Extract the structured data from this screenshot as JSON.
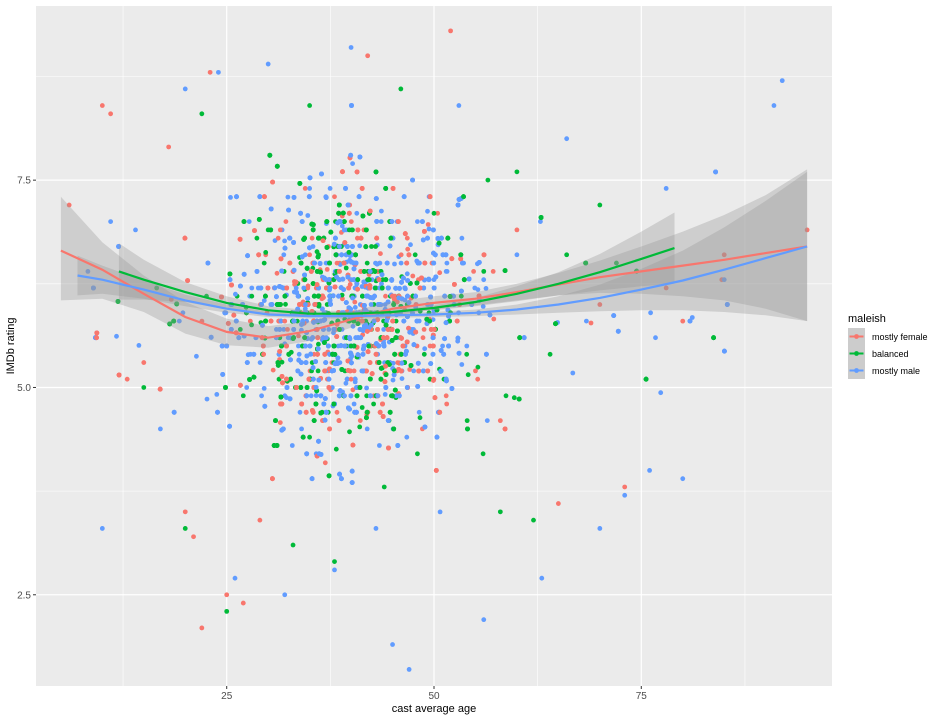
{
  "chart_data": {
    "type": "scatter",
    "xlabel": "cast average age",
    "ylabel": "IMDb rating",
    "xlim": [
      2,
      98
    ],
    "ylim": [
      1.4,
      9.6
    ],
    "x_ticks": [
      25,
      50,
      75
    ],
    "x_tick_labels": [
      "25",
      "50",
      "75"
    ],
    "y_ticks": [
      2.5,
      5.0,
      7.5
    ],
    "y_tick_labels": [
      "2.5",
      "5.0",
      "7.5"
    ],
    "grid": true,
    "legend": {
      "title": "maleish",
      "position": "right",
      "entries": [
        "mostly female",
        "balanced",
        "mostly male"
      ]
    },
    "colors": {
      "mostly female": "#F8766D",
      "balanced": "#00BA38",
      "mostly male": "#619CFF",
      "panel": "#EBEBEB",
      "grid": "#FFFFFF",
      "ribbon": "#999999"
    },
    "series": [
      {
        "name": "mostly female",
        "trend": {
          "x": [
            5,
            10,
            15,
            20,
            25,
            30,
            35,
            40,
            45,
            50,
            55,
            60,
            65,
            70,
            75,
            80,
            85,
            90,
            95
          ],
          "y": [
            6.65,
            6.42,
            6.13,
            5.85,
            5.67,
            5.6,
            5.68,
            5.82,
            5.95,
            6.02,
            6.07,
            6.15,
            6.24,
            6.33,
            6.4,
            6.47,
            6.54,
            6.62,
            6.7
          ],
          "ymin": [
            6.05,
            6.07,
            5.91,
            5.65,
            5.51,
            5.48,
            5.56,
            5.72,
            5.86,
            5.94,
            5.99,
            6.05,
            6.11,
            6.14,
            6.13,
            6.1,
            6.05,
            5.95,
            5.8
          ],
          "ymax": [
            7.3,
            6.75,
            6.35,
            6.03,
            5.83,
            5.74,
            5.8,
            5.92,
            6.04,
            6.1,
            6.15,
            6.25,
            6.38,
            6.53,
            6.7,
            6.88,
            7.08,
            7.32,
            7.63
          ]
        },
        "sample_points": [
          [
            6,
            7.2
          ],
          [
            10,
            8.4
          ],
          [
            11,
            8.3
          ],
          [
            13,
            5.1
          ],
          [
            15,
            5.3
          ],
          [
            18,
            7.9
          ],
          [
            20,
            3.5
          ],
          [
            21,
            3.2
          ],
          [
            22,
            2.1
          ],
          [
            23,
            8.8
          ],
          [
            25,
            2.5
          ],
          [
            27,
            2.4
          ],
          [
            29,
            3.4
          ],
          [
            32,
            5.8
          ],
          [
            35,
            6.6
          ],
          [
            38,
            7.3
          ],
          [
            40,
            5.1
          ],
          [
            42,
            9.0
          ],
          [
            46,
            5.6
          ],
          [
            52,
            9.3
          ],
          [
            55,
            5.2
          ],
          [
            58,
            4.6
          ],
          [
            60,
            6.9
          ],
          [
            65,
            3.6
          ],
          [
            70,
            6.0
          ],
          [
            73,
            3.8
          ],
          [
            78,
            6.2
          ],
          [
            80,
            5.8
          ],
          [
            85,
            6.6
          ],
          [
            95,
            6.9
          ]
        ]
      },
      {
        "name": "balanced",
        "trend": {
          "x": [
            12,
            15,
            20,
            25,
            30,
            35,
            40,
            45,
            50,
            55,
            60,
            65,
            70,
            75,
            79
          ],
          "y": [
            6.4,
            6.3,
            6.15,
            6.02,
            5.93,
            5.89,
            5.89,
            5.91,
            5.96,
            6.03,
            6.13,
            6.25,
            6.39,
            6.55,
            6.68
          ],
          "ymin": [
            6.06,
            6.06,
            6.03,
            5.94,
            5.88,
            5.85,
            5.86,
            5.88,
            5.93,
            5.98,
            6.04,
            6.11,
            6.17,
            6.22,
            6.25
          ],
          "ymax": [
            6.74,
            6.54,
            6.27,
            6.1,
            5.98,
            5.93,
            5.92,
            5.94,
            5.99,
            6.08,
            6.22,
            6.39,
            6.61,
            6.88,
            7.11
          ]
        },
        "sample_points": [
          [
            15,
            5.0
          ],
          [
            20,
            3.3
          ],
          [
            22,
            8.3
          ],
          [
            25,
            2.3
          ],
          [
            27,
            4.9
          ],
          [
            30,
            6.9
          ],
          [
            33,
            3.1
          ],
          [
            35,
            8.4
          ],
          [
            38,
            2.9
          ],
          [
            40,
            5.5
          ],
          [
            42,
            6.3
          ],
          [
            44,
            3.8
          ],
          [
            46,
            8.6
          ],
          [
            48,
            4.2
          ],
          [
            50,
            7.1
          ],
          [
            52,
            5.9
          ],
          [
            54,
            4.6
          ],
          [
            56,
            6.4
          ],
          [
            58,
            3.5
          ],
          [
            60,
            7.6
          ],
          [
            62,
            3.4
          ],
          [
            64,
            5.4
          ],
          [
            66,
            6.6
          ],
          [
            70,
            7.2
          ],
          [
            72,
            6.5
          ]
        ]
      },
      {
        "name": "mostly male",
        "trend": {
          "x": [
            7,
            10,
            15,
            20,
            25,
            30,
            35,
            40,
            45,
            50,
            55,
            60,
            65,
            70,
            75,
            80,
            85,
            90,
            95
          ],
          "y": [
            6.35,
            6.3,
            6.18,
            6.05,
            5.95,
            5.88,
            5.86,
            5.86,
            5.87,
            5.88,
            5.9,
            5.94,
            6.0,
            6.08,
            6.18,
            6.29,
            6.42,
            6.56,
            6.7
          ],
          "ymin": [
            6.11,
            6.13,
            6.07,
            5.98,
            5.9,
            5.85,
            5.83,
            5.83,
            5.84,
            5.85,
            5.86,
            5.88,
            5.9,
            5.92,
            5.93,
            5.93,
            5.91,
            5.87,
            5.8
          ],
          "ymax": [
            6.59,
            6.47,
            6.29,
            6.12,
            6.0,
            5.91,
            5.89,
            5.89,
            5.9,
            5.91,
            5.94,
            6.0,
            6.1,
            6.24,
            6.43,
            6.65,
            6.93,
            7.25,
            7.6
          ]
        },
        "sample_points": [
          [
            10,
            3.3
          ],
          [
            11,
            7.0
          ],
          [
            14,
            6.9
          ],
          [
            17,
            4.5
          ],
          [
            20,
            8.6
          ],
          [
            24,
            8.8
          ],
          [
            26,
            2.7
          ],
          [
            30,
            8.9
          ],
          [
            32,
            2.5
          ],
          [
            35,
            7.4
          ],
          [
            38,
            2.8
          ],
          [
            40,
            9.1
          ],
          [
            43,
            3.3
          ],
          [
            45,
            1.9
          ],
          [
            47,
            1.6
          ],
          [
            50,
            6.3
          ],
          [
            53,
            8.4
          ],
          [
            56,
            2.2
          ],
          [
            60,
            6.6
          ],
          [
            63,
            2.7
          ],
          [
            66,
            8.0
          ],
          [
            70,
            3.3
          ],
          [
            73,
            3.7
          ],
          [
            76,
            4.0
          ],
          [
            78,
            7.4
          ],
          [
            80,
            3.9
          ],
          [
            85,
            6.3
          ],
          [
            91,
            8.4
          ],
          [
            92,
            8.7
          ]
        ]
      }
    ]
  }
}
